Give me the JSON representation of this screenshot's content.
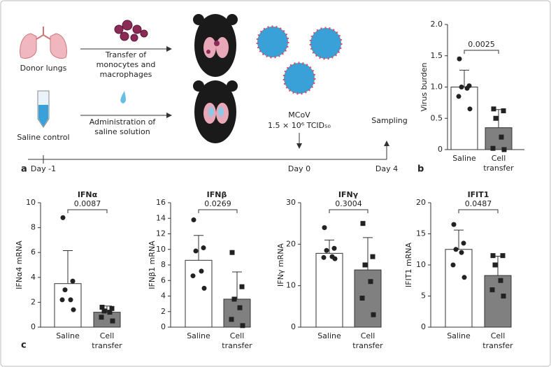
{
  "diagram": {
    "donor": "Donor lungs",
    "transfer": "Transfer of monocytes and macrophages",
    "saline": "Saline control",
    "administration": "Administration of saline solution",
    "virus": "MCoV",
    "dose": "1.5 × 10⁶ TCID₅₀",
    "sampling": "Sampling",
    "days": [
      "Day -1",
      "Day 0",
      "Day 4"
    ]
  },
  "panel_labels": [
    "a",
    "b",
    "c"
  ],
  "chart_data": [
    {
      "type": "bar",
      "ylabel": "Virus burden",
      "categories": [
        "Saline",
        "Cell transfer"
      ],
      "values": [
        1.0,
        0.35
      ],
      "errors": [
        0.27,
        0.29
      ],
      "colors": [
        "#ffffff",
        "#808080"
      ],
      "markers": [
        "circle",
        "square"
      ],
      "points": [
        [
          1.45,
          1.02,
          1.0,
          0.98,
          0.85,
          0.65
        ],
        [
          0.65,
          0.62,
          0.5,
          0.2,
          0.02,
          0.0
        ]
      ],
      "annotation": "0.0025",
      "ylim": [
        0,
        2
      ],
      "yticks": [
        0,
        0.5,
        {
          "value": 1,
          "label": "1.0"
        },
        1.5,
        {
          "value": 2,
          "label": "2.0"
        }
      ]
    },
    {
      "type": "bar",
      "title": "IFNα",
      "ylabel": "IFNα4 mRNA",
      "categories": [
        "Saline",
        "Cell transfer"
      ],
      "values": [
        3.5,
        1.2
      ],
      "errors": [
        2.65,
        0.5
      ],
      "colors": [
        "#ffffff",
        "#808080"
      ],
      "markers": [
        "circle",
        "square"
      ],
      "points": [
        [
          8.8,
          3.7,
          3.0,
          2.2,
          2.2,
          1.4
        ],
        [
          1.6,
          1.5,
          1.3,
          1.2,
          0.8,
          0.5
        ]
      ],
      "annotation": "0.0087",
      "ylim": [
        0,
        10
      ],
      "yticks": [
        0,
        2,
        4,
        6,
        8,
        10
      ]
    },
    {
      "type": "bar",
      "title": "IFNβ",
      "ylabel": "IFNβ1 mRNA",
      "categories": [
        "Saline",
        "Cell transfer"
      ],
      "values": [
        8.6,
        3.6
      ],
      "errors": [
        3.2,
        3.5
      ],
      "colors": [
        "#ffffff",
        "#808080"
      ],
      "markers": [
        "circle",
        "square"
      ],
      "points": [
        [
          13.8,
          10.2,
          9.8,
          7.2,
          6.6,
          5.0
        ],
        [
          9.6,
          5.2,
          3.6,
          2.5,
          1.0,
          0.2
        ]
      ],
      "annotation": "0.0269",
      "ylim": [
        0,
        16
      ],
      "yticks": [
        0,
        2,
        4,
        6,
        8,
        10,
        12,
        14,
        16
      ]
    },
    {
      "type": "bar",
      "title": "IFNγ",
      "ylabel": "IFNγ mRNA",
      "categories": [
        "Saline",
        "Cell transfer"
      ],
      "values": [
        17.8,
        13.8
      ],
      "errors": [
        3.2,
        7.8
      ],
      "colors": [
        "#ffffff",
        "#808080"
      ],
      "markers": [
        "circle",
        "square"
      ],
      "points": [
        [
          24,
          19,
          18.5,
          17,
          16.8,
          16.5
        ],
        [
          25,
          17,
          15,
          11,
          7,
          3
        ]
      ],
      "annotation": "0.3004",
      "ylim": [
        0,
        30
      ],
      "yticks": [
        0,
        10,
        20,
        30
      ]
    },
    {
      "type": "bar",
      "title": "IFIT1",
      "ylabel": "IFIT1 mRNA",
      "categories": [
        "Saline",
        "Cell transfer"
      ],
      "values": [
        12.5,
        8.3
      ],
      "errors": [
        3.1,
        3.1
      ],
      "colors": [
        "#ffffff",
        "#808080"
      ],
      "markers": [
        "circle",
        "square"
      ],
      "points": [
        [
          16.5,
          13.5,
          12.5,
          12,
          10,
          8
        ],
        [
          11.5,
          11.5,
          10,
          7.5,
          6,
          5
        ]
      ],
      "annotation": "0.0487",
      "ylim": [
        0,
        20
      ],
      "yticks": [
        0,
        5,
        10,
        15,
        20
      ]
    }
  ]
}
